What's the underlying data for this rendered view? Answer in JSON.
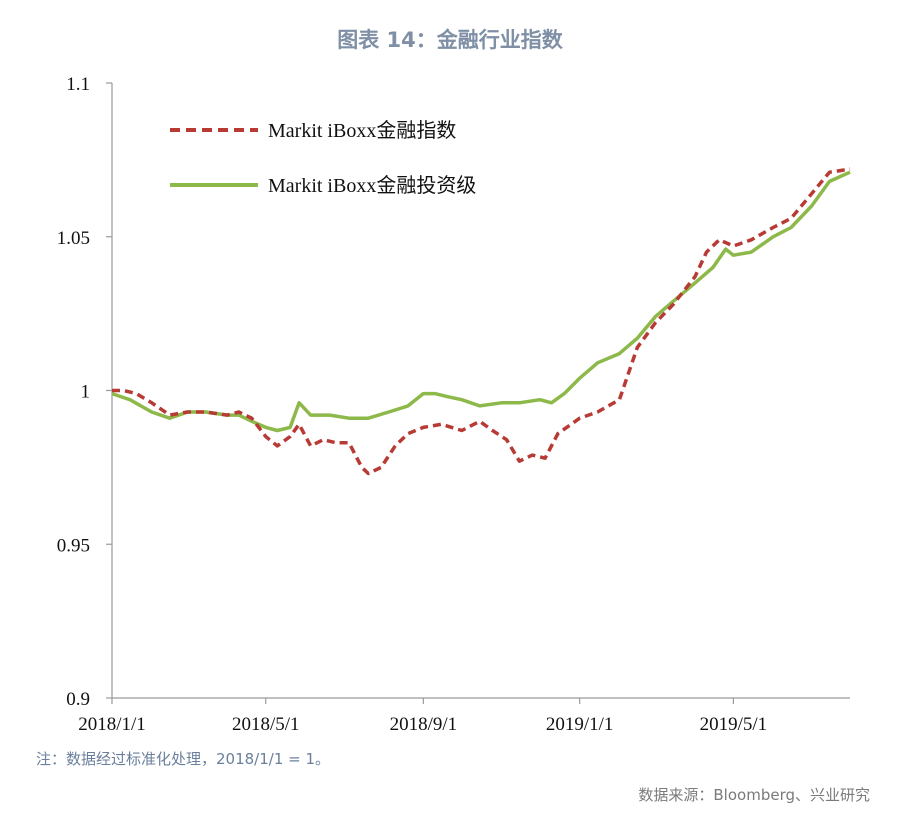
{
  "title": "图表 14：金融行业指数",
  "note": "注：数据经过标准化处理，2018/1/1 = 1。",
  "source": "数据来源：Bloomberg、兴业研究",
  "colors": {
    "series1": "#b83a35",
    "series2": "#8db84a",
    "axis": "#9a9a9a"
  },
  "chart_data": {
    "type": "line",
    "x_tick_labels": [
      "2018/1/1",
      "2018/5/1",
      "2018/9/1",
      "2019/1/1",
      "2019/5/1"
    ],
    "x_tick_dates": [
      "2018-01-01",
      "2018-05-01",
      "2018-09-01",
      "2019-01-01",
      "2019-05-01"
    ],
    "x_range": [
      "2018-01-01",
      "2019-07-31"
    ],
    "y_ticks": [
      0.9,
      0.95,
      1,
      1.05,
      1.1
    ],
    "y_tick_labels": [
      "0.9",
      "0.95",
      "1",
      "1.05",
      "1.1"
    ],
    "ylim": [
      0.9,
      1.1
    ],
    "legend_position": "top-left",
    "series": [
      {
        "name": "Markit iBoxx金融指数",
        "style": "dashed",
        "points": [
          [
            "2018-01-01",
            1.0
          ],
          [
            "2018-01-10",
            1.0
          ],
          [
            "2018-01-20",
            0.999
          ],
          [
            "2018-02-01",
            0.996
          ],
          [
            "2018-02-15",
            0.992
          ],
          [
            "2018-03-01",
            0.993
          ],
          [
            "2018-03-15",
            0.993
          ],
          [
            "2018-04-01",
            0.992
          ],
          [
            "2018-04-10",
            0.993
          ],
          [
            "2018-04-20",
            0.991
          ],
          [
            "2018-05-01",
            0.985
          ],
          [
            "2018-05-10",
            0.982
          ],
          [
            "2018-05-20",
            0.985
          ],
          [
            "2018-05-27",
            0.989
          ],
          [
            "2018-06-05",
            0.982
          ],
          [
            "2018-06-15",
            0.984
          ],
          [
            "2018-06-25",
            0.983
          ],
          [
            "2018-07-05",
            0.983
          ],
          [
            "2018-07-15",
            0.975
          ],
          [
            "2018-07-20",
            0.973
          ],
          [
            "2018-07-30",
            0.975
          ],
          [
            "2018-08-10",
            0.982
          ],
          [
            "2018-08-20",
            0.986
          ],
          [
            "2018-09-01",
            0.988
          ],
          [
            "2018-09-15",
            0.989
          ],
          [
            "2018-10-01",
            0.987
          ],
          [
            "2018-10-15",
            0.99
          ],
          [
            "2018-10-25",
            0.987
          ],
          [
            "2018-11-05",
            0.984
          ],
          [
            "2018-11-15",
            0.977
          ],
          [
            "2018-11-25",
            0.979
          ],
          [
            "2018-12-05",
            0.978
          ],
          [
            "2018-12-15",
            0.986
          ],
          [
            "2019-01-01",
            0.991
          ],
          [
            "2019-01-15",
            0.993
          ],
          [
            "2019-02-01",
            0.997
          ],
          [
            "2019-02-15",
            1.014
          ],
          [
            "2019-03-01",
            1.022
          ],
          [
            "2019-03-15",
            1.028
          ],
          [
            "2019-04-01",
            1.037
          ],
          [
            "2019-04-10",
            1.045
          ],
          [
            "2019-04-20",
            1.049
          ],
          [
            "2019-05-01",
            1.047
          ],
          [
            "2019-05-15",
            1.049
          ],
          [
            "2019-06-01",
            1.053
          ],
          [
            "2019-06-15",
            1.056
          ],
          [
            "2019-07-01",
            1.064
          ],
          [
            "2019-07-15",
            1.071
          ],
          [
            "2019-07-31",
            1.072
          ]
        ]
      },
      {
        "name": "Markit iBoxx金融投资级",
        "style": "solid",
        "points": [
          [
            "2018-01-01",
            0.999
          ],
          [
            "2018-01-15",
            0.997
          ],
          [
            "2018-02-01",
            0.993
          ],
          [
            "2018-02-15",
            0.991
          ],
          [
            "2018-03-01",
            0.993
          ],
          [
            "2018-03-15",
            0.993
          ],
          [
            "2018-04-01",
            0.992
          ],
          [
            "2018-04-10",
            0.992
          ],
          [
            "2018-04-20",
            0.99
          ],
          [
            "2018-05-01",
            0.988
          ],
          [
            "2018-05-10",
            0.987
          ],
          [
            "2018-05-20",
            0.988
          ],
          [
            "2018-05-27",
            0.996
          ],
          [
            "2018-06-05",
            0.992
          ],
          [
            "2018-06-20",
            0.992
          ],
          [
            "2018-07-05",
            0.991
          ],
          [
            "2018-07-20",
            0.991
          ],
          [
            "2018-08-05",
            0.993
          ],
          [
            "2018-08-20",
            0.995
          ],
          [
            "2018-09-01",
            0.999
          ],
          [
            "2018-09-10",
            0.999
          ],
          [
            "2018-09-20",
            0.998
          ],
          [
            "2018-10-01",
            0.997
          ],
          [
            "2018-10-15",
            0.995
          ],
          [
            "2018-11-01",
            0.996
          ],
          [
            "2018-11-15",
            0.996
          ],
          [
            "2018-12-01",
            0.997
          ],
          [
            "2018-12-10",
            0.996
          ],
          [
            "2018-12-20",
            0.999
          ],
          [
            "2019-01-01",
            1.004
          ],
          [
            "2019-01-15",
            1.009
          ],
          [
            "2019-02-01",
            1.012
          ],
          [
            "2019-02-15",
            1.017
          ],
          [
            "2019-03-01",
            1.024
          ],
          [
            "2019-03-15",
            1.029
          ],
          [
            "2019-04-01",
            1.035
          ],
          [
            "2019-04-15",
            1.04
          ],
          [
            "2019-04-25",
            1.046
          ],
          [
            "2019-05-01",
            1.044
          ],
          [
            "2019-05-15",
            1.045
          ],
          [
            "2019-06-01",
            1.05
          ],
          [
            "2019-06-15",
            1.053
          ],
          [
            "2019-07-01",
            1.06
          ],
          [
            "2019-07-15",
            1.068
          ],
          [
            "2019-07-31",
            1.071
          ]
        ]
      }
    ]
  }
}
